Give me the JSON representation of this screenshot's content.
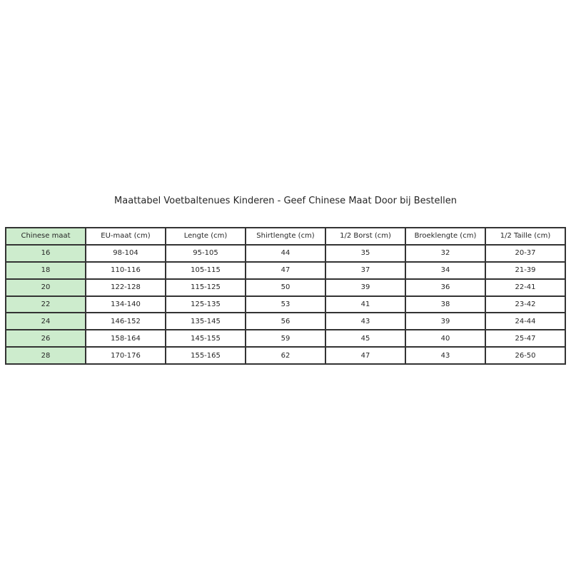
{
  "chart_data": {
    "type": "table",
    "title": "Maattabel Voetbaltenues Kinderen - Geef Chinese Maat Door bij Bestellen",
    "columns": [
      "Chinese maat",
      "EU-maat (cm)",
      "Lengte (cm)",
      "Shirtlengte (cm)",
      "1/2 Borst (cm)",
      "Broeklengte (cm)",
      "1/2 Taille (cm)"
    ],
    "rows": [
      [
        "16",
        "98-104",
        "95-105",
        "44",
        "35",
        "32",
        "20-37"
      ],
      [
        "18",
        "110-116",
        "105-115",
        "47",
        "37",
        "34",
        "21-39"
      ],
      [
        "20",
        "122-128",
        "115-125",
        "50",
        "39",
        "36",
        "22-41"
      ],
      [
        "22",
        "134-140",
        "125-135",
        "53",
        "41",
        "38",
        "23-42"
      ],
      [
        "24",
        "146-152",
        "135-145",
        "56",
        "43",
        "39",
        "24-44"
      ],
      [
        "26",
        "158-164",
        "145-155",
        "59",
        "45",
        "40",
        "25-47"
      ],
      [
        "28",
        "170-176",
        "155-165",
        "62",
        "47",
        "43",
        "26-50"
      ]
    ],
    "layout_hints": {
      "first_column_highlighted": true,
      "grid": "on",
      "cell_text_align": "center"
    }
  },
  "colors": {
    "background": "#ffffff",
    "first_column_bg": "#cdeccd",
    "border": "#333333",
    "text": "#262626"
  }
}
